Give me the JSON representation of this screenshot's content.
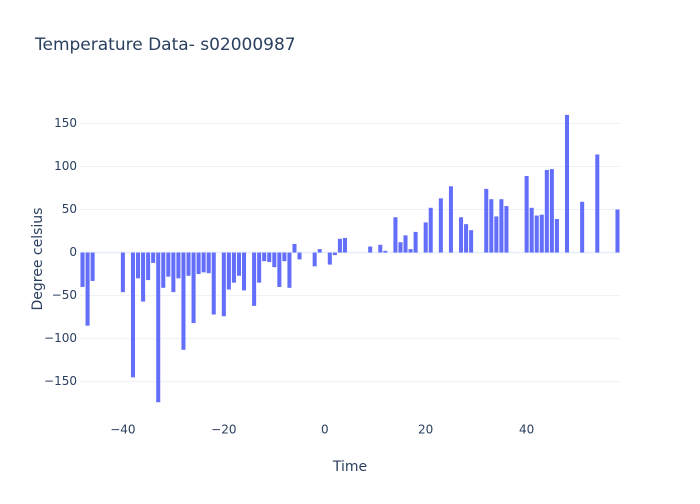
{
  "chart_data": {
    "type": "bar",
    "title": "Temperature Data- s02000987",
    "x_label": "Time",
    "y_label": "Degree celsius",
    "color": "#636efa",
    "grid": true,
    "x": [
      -48,
      -47,
      -46,
      -40,
      -38,
      -37,
      -36,
      -35,
      -34,
      -33,
      -32,
      -31,
      -30,
      -29,
      -28,
      -27,
      -26,
      -25,
      -24,
      -23,
      -22,
      -20,
      -19,
      -18,
      -17,
      -16,
      -14,
      -13,
      -12,
      -11,
      -10,
      -9,
      -8,
      -7,
      -6,
      -5,
      -2,
      -1,
      1,
      2,
      3,
      4,
      9,
      11,
      12,
      14,
      15,
      16,
      17,
      18,
      20,
      21,
      23,
      25,
      27,
      28,
      29,
      32,
      33,
      34,
      35,
      36,
      40,
      41,
      42,
      43,
      44,
      45,
      46,
      48,
      51,
      54,
      58
    ],
    "values": [
      -40,
      -85,
      -33,
      -46,
      -145,
      -30,
      -57,
      -32,
      -12,
      -174,
      -41,
      -28,
      -46,
      -30,
      -113,
      -27,
      -82,
      -25,
      -23,
      -24,
      -72,
      -74,
      -43,
      -35,
      -27,
      -44,
      -62,
      -35,
      -10,
      -11,
      -17,
      -40,
      -10,
      -41,
      10,
      -8,
      -16,
      4,
      -14,
      -3,
      16,
      17,
      7,
      9,
      2,
      41,
      12,
      20,
      4,
      24,
      35,
      52,
      63,
      77,
      41,
      33,
      26,
      74,
      62,
      42,
      62,
      54,
      89,
      52,
      43,
      44,
      96,
      97,
      39,
      160,
      59,
      114,
      50
    ],
    "xlim": [
      -48.5,
      58.5
    ],
    "ylim": [
      -183,
      168
    ],
    "xticks": [
      {
        "value": -40,
        "label": "−40"
      },
      {
        "value": -20,
        "label": "−20"
      },
      0,
      20,
      40
    ],
    "yticks": [
      {
        "value": -150,
        "label": "−150"
      },
      {
        "value": -100,
        "label": "−100"
      },
      {
        "value": -50,
        "label": "−50"
      },
      0,
      50,
      100,
      150
    ]
  }
}
